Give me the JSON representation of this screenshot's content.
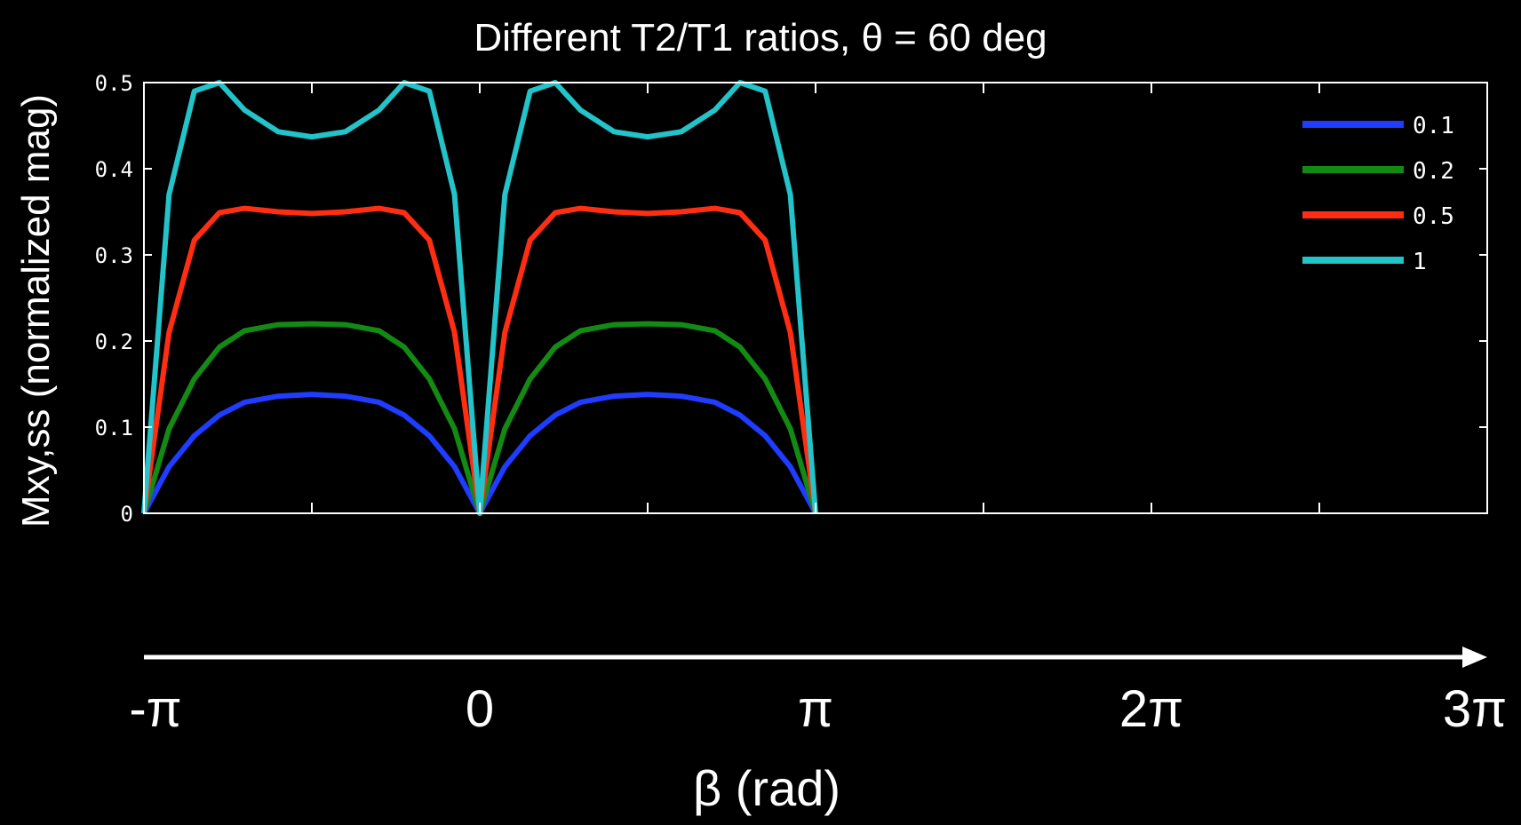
{
  "chart_data": {
    "type": "line",
    "title": "Different T2/T1 ratios, θ = 60 deg",
    "ylabel": "Mxy,ss (normalized mag)",
    "xlabel": "β (rad)",
    "xlim": [
      -3.1416,
      9.4248
    ],
    "ylim": [
      0,
      0.5
    ],
    "yticks": [
      "0",
      "0.1",
      "0.2",
      "0.3",
      "0.4",
      "0.5"
    ],
    "yticks_values": [
      0,
      0.1,
      0.2,
      0.3,
      0.4,
      0.5
    ],
    "x_axis_labels": [
      "-π",
      "0",
      "π",
      "2π",
      "3π"
    ],
    "x_axis_labels_values": [
      -3.1416,
      0,
      3.1416,
      6.2832,
      9.4248
    ],
    "legend_position": "top-right",
    "grid": false,
    "series": [
      {
        "name": "0.1",
        "color": "#1f3cff",
        "y": [
          0,
          0.054,
          0.09,
          0.114,
          0.129,
          0.136,
          0.138,
          0.136,
          0.129,
          0.114,
          0.09,
          0.054,
          0
        ]
      },
      {
        "name": "0.2",
        "color": "#138a13",
        "y": [
          0,
          0.098,
          0.156,
          0.193,
          0.212,
          0.219,
          0.22,
          0.219,
          0.212,
          0.193,
          0.156,
          0.098,
          0
        ]
      },
      {
        "name": "0.5",
        "color": "#ff2e12",
        "y": [
          0,
          0.21,
          0.317,
          0.349,
          0.354,
          0.35,
          0.348,
          0.35,
          0.354,
          0.349,
          0.317,
          0.21,
          0
        ]
      },
      {
        "name": "1",
        "color": "#22c3c9",
        "y": [
          0,
          0.37,
          0.49,
          0.5,
          0.468,
          0.443,
          0.437,
          0.443,
          0.468,
          0.5,
          0.49,
          0.37,
          0
        ]
      }
    ]
  }
}
